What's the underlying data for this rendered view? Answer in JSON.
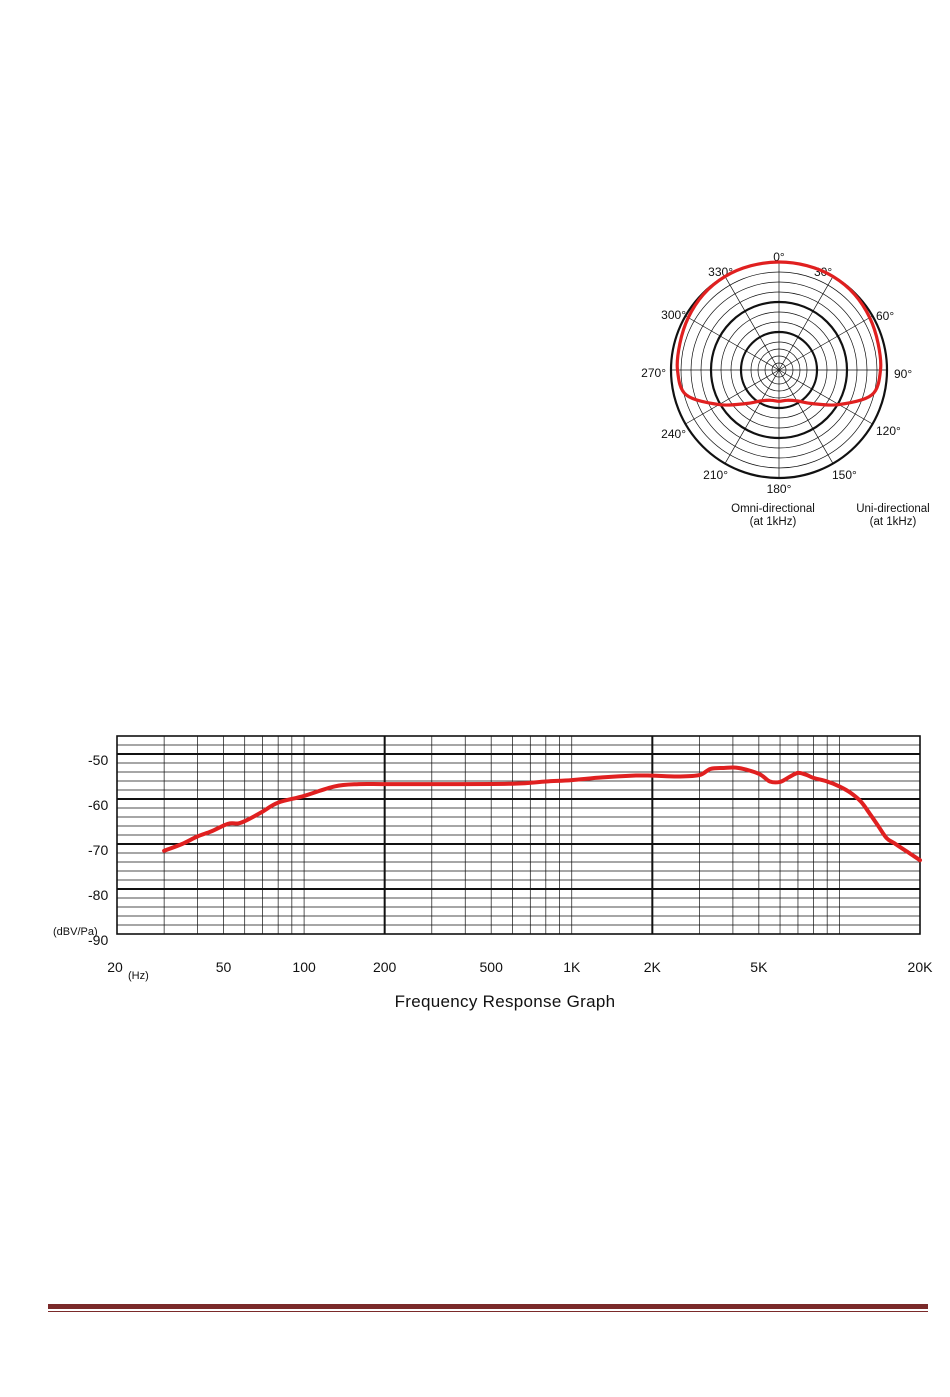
{
  "chart_data": [
    {
      "type": "polar",
      "angle_labels": [
        "0°",
        "30°",
        "60°",
        "90°",
        "120°",
        "150°",
        "180°",
        "210°",
        "240°",
        "270°",
        "300°",
        "330°"
      ],
      "legend": [
        "Omni-directional",
        "(at 1kHz)",
        "Uni-directional",
        "(at 1kHz)"
      ],
      "series": [
        {
          "color": "#e02020",
          "angles": [
            0,
            15,
            30,
            45,
            60,
            75,
            90,
            105,
            120,
            135,
            150,
            165,
            180,
            195,
            210,
            225,
            240,
            255,
            270,
            285,
            300,
            315,
            330,
            345
          ],
          "radius_fraction": [
            1.0,
            1.0,
            1.0,
            0.99,
            0.97,
            0.95,
            0.94,
            0.89,
            0.64,
            0.44,
            0.33,
            0.29,
            0.29,
            0.29,
            0.33,
            0.44,
            0.64,
            0.89,
            0.94,
            0.95,
            0.97,
            0.99,
            1.0,
            1.0
          ]
        }
      ]
    },
    {
      "type": "line",
      "title": "Frequency Response Graph",
      "ylabel": "(dBV/Pa)",
      "xlabel": "(Hz)",
      "x_scale": "log",
      "xlim": [
        20,
        20000
      ],
      "ylim": [
        -90,
        -46
      ],
      "x_tick_labels": [
        {
          "v": 20,
          "t": "20"
        },
        {
          "v": 50,
          "t": "50"
        },
        {
          "v": 100,
          "t": "100"
        },
        {
          "v": 200,
          "t": "200"
        },
        {
          "v": 500,
          "t": "500"
        },
        {
          "v": 1000,
          "t": "1K"
        },
        {
          "v": 2000,
          "t": "2K"
        },
        {
          "v": 5000,
          "t": "5K"
        },
        {
          "v": 20000,
          "t": "20K"
        }
      ],
      "y_tick_labels": [
        {
          "v": -50,
          "t": "-50"
        },
        {
          "v": -60,
          "t": "-60"
        },
        {
          "v": -70,
          "t": "-70"
        },
        {
          "v": -80,
          "t": "-80"
        },
        {
          "v": -90,
          "t": "-90"
        }
      ],
      "grid": true,
      "series": [
        {
          "color": "#e02020",
          "x": [
            30,
            35,
            40,
            45,
            52,
            57,
            62,
            70,
            80,
            100,
            130,
            160,
            200,
            300,
            600,
            800,
            1000,
            1300,
            1700,
            2000,
            2500,
            3000,
            3300,
            3700,
            4200,
            5000,
            5500,
            6000,
            6500,
            7000,
            7500,
            8000,
            9000,
            10000,
            11000,
            12000,
            13000,
            14000,
            15000,
            16000,
            18000,
            20000
          ],
          "y": [
            -71.5,
            -70,
            -68.3,
            -67.2,
            -65.5,
            -65.4,
            -64.5,
            -62.8,
            -60.8,
            -59.3,
            -57.2,
            -56.7,
            -56.7,
            -56.7,
            -56.6,
            -56.1,
            -55.8,
            -55.2,
            -54.8,
            -54.8,
            -55.0,
            -54.7,
            -53.3,
            -53.1,
            -53.1,
            -54.4,
            -56.1,
            -56.2,
            -55.1,
            -54.2,
            -54.6,
            -55.3,
            -56.1,
            -57.2,
            -58.6,
            -60.5,
            -63.3,
            -66.1,
            -68.7,
            -69.8,
            -71.8,
            -73.6
          ]
        }
      ]
    }
  ]
}
